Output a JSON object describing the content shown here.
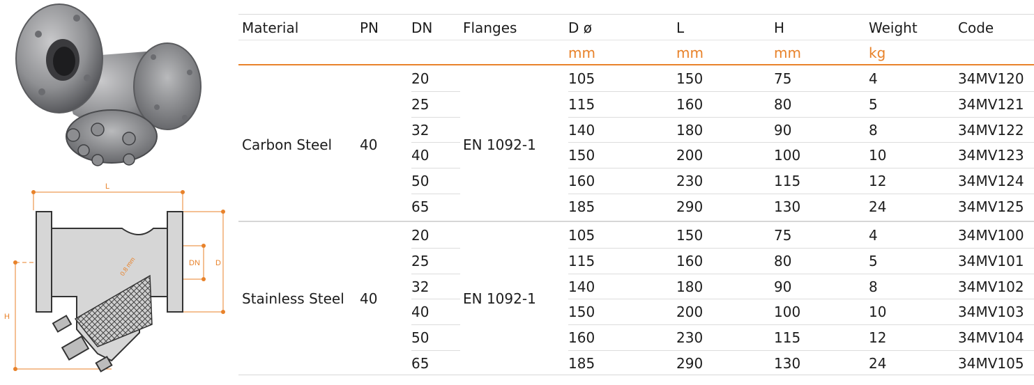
{
  "drawing": {
    "label_l": "L",
    "label_dn": "DN",
    "label_d": "D",
    "label_h": "H",
    "mesh": "0.8 mm"
  },
  "table": {
    "headers": [
      "Material",
      "PN",
      "DN",
      "Flanges",
      "D ø",
      "L",
      "H",
      "Weight",
      "Code"
    ],
    "units": [
      "",
      "",
      "",
      "",
      "mm",
      "mm",
      "mm",
      "kg",
      ""
    ],
    "groups": [
      {
        "material": "Carbon Steel",
        "pn": "40",
        "flanges": "EN 1092-1",
        "rows": [
          [
            "20",
            "105",
            "150",
            "75",
            "4",
            "34MV120"
          ],
          [
            "25",
            "115",
            "160",
            "80",
            "5",
            "34MV121"
          ],
          [
            "32",
            "140",
            "180",
            "90",
            "8",
            "34MV122"
          ],
          [
            "40",
            "150",
            "200",
            "100",
            "10",
            "34MV123"
          ],
          [
            "50",
            "160",
            "230",
            "115",
            "12",
            "34MV124"
          ],
          [
            "65",
            "185",
            "290",
            "130",
            "24",
            "34MV125"
          ]
        ]
      },
      {
        "material": "Stainless Steel",
        "pn": "40",
        "flanges": "EN 1092-1",
        "rows": [
          [
            "20",
            "105",
            "150",
            "75",
            "4",
            "34MV100"
          ],
          [
            "25",
            "115",
            "160",
            "80",
            "5",
            "34MV101"
          ],
          [
            "32",
            "140",
            "180",
            "90",
            "8",
            "34MV102"
          ],
          [
            "40",
            "150",
            "200",
            "100",
            "10",
            "34MV103"
          ],
          [
            "50",
            "160",
            "230",
            "115",
            "12",
            "34MV104"
          ],
          [
            "65",
            "185",
            "290",
            "130",
            "24",
            "34MV105"
          ]
        ]
      }
    ]
  },
  "colors": {
    "accent": "#e8822a",
    "rule": "#d8d8d8",
    "text": "#1c1c1c"
  }
}
